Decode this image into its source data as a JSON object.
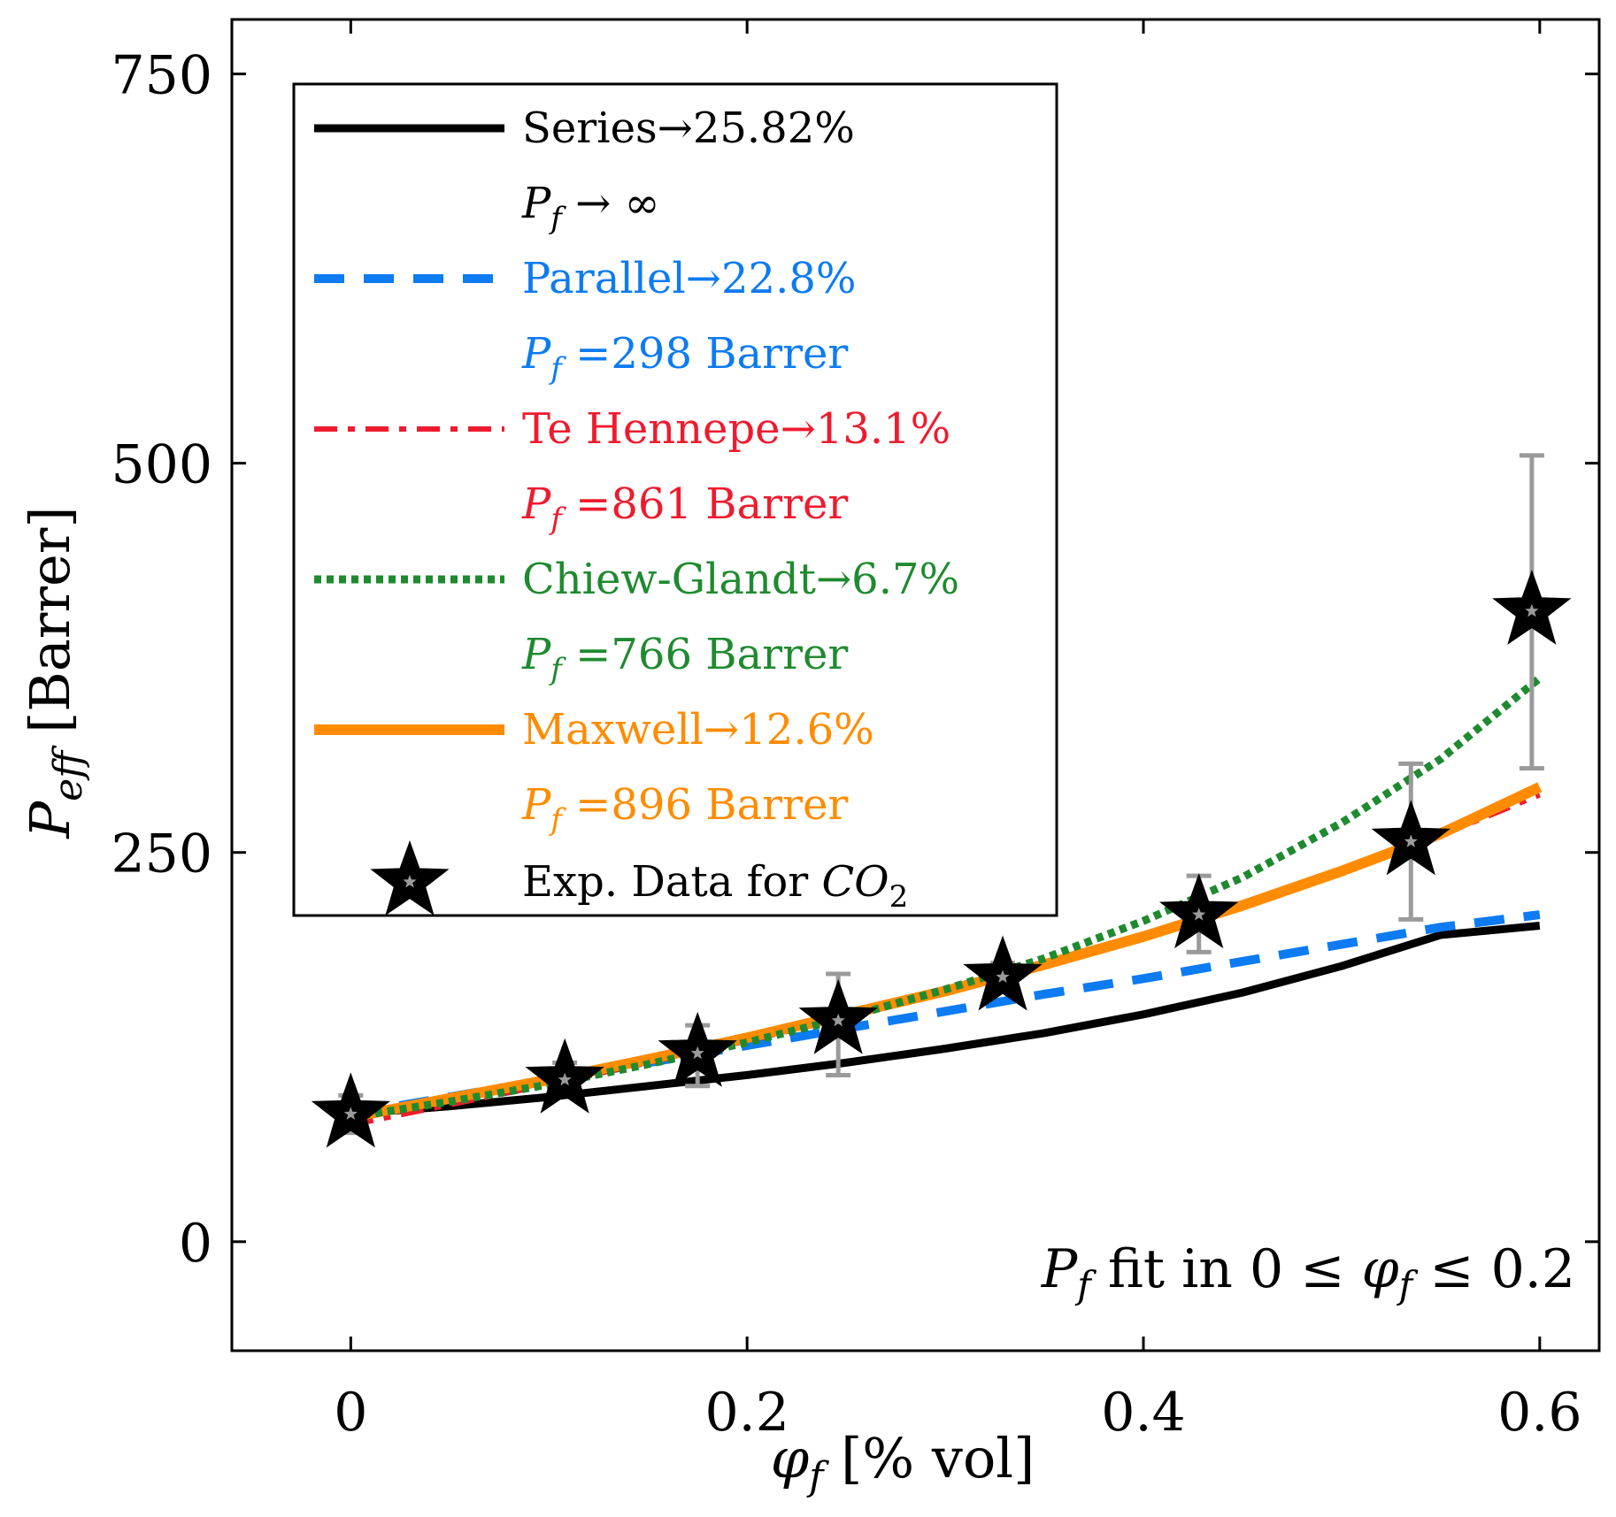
{
  "chart_data": {
    "type": "line",
    "xlabel": "φ_f [% vol]",
    "xlabel_parts": {
      "symbol": "φ",
      "sub": "f",
      "rest": " [% vol]"
    },
    "ylabel": "P_eff [Barrer]",
    "ylabel_parts": {
      "symbol": "P",
      "sub": "eff",
      "rest": " [Barrer]"
    },
    "xlim": [
      -0.06,
      0.63
    ],
    "ylim": [
      -70,
      785
    ],
    "x_ticks": [
      0,
      0.2,
      0.4,
      0.6
    ],
    "x_tick_labels": [
      "0",
      "0.2",
      "0.4",
      "0.6"
    ],
    "y_ticks": [
      0,
      250,
      500,
      750
    ],
    "y_tick_labels": [
      "0",
      "250",
      "500",
      "750"
    ],
    "grid": false,
    "legend_position": "top-left",
    "annotation": {
      "pre": "P",
      "pre_sub": "f",
      "text": " fit in 0 ≤ ",
      "sym": "φ",
      "sym_sub": "f",
      "post": " ≤ 0.2"
    },
    "series": [
      {
        "name": "Series→25.82%",
        "subtitle": {
          "pre": "P",
          "sub": "f",
          "post": " → ∞"
        },
        "color": "#000000",
        "style": "solid",
        "x": [
          0,
          0.05,
          0.1,
          0.15,
          0.2,
          0.25,
          0.3,
          0.35,
          0.4,
          0.45,
          0.5,
          0.55,
          0.6
        ],
        "values": [
          82,
          87,
          93,
          100,
          107,
          115,
          124,
          134,
          146,
          160,
          177,
          197,
          203
        ]
      },
      {
        "name": "Parallel→22.8%",
        "subtitle": {
          "pre": "P",
          "sub": "f",
          "post": " =298 Barrer"
        },
        "color": "#0d7bf2",
        "style": "dashed",
        "x": [
          0,
          0.05,
          0.1,
          0.15,
          0.2,
          0.25,
          0.3,
          0.35,
          0.4,
          0.45,
          0.5,
          0.55,
          0.6
        ],
        "values": [
          82,
          93,
          104,
          115,
          126,
          137,
          148,
          159,
          169,
          180,
          191,
          202,
          210
        ]
      },
      {
        "name": "Te Hennepe→13.1%",
        "subtitle": {
          "pre": "P",
          "sub": "f",
          "post": " =861 Barrer"
        },
        "color": "#ee1b2e",
        "style": "dashdot",
        "x": [
          0,
          0.05,
          0.1,
          0.15,
          0.2,
          0.25,
          0.3,
          0.35,
          0.4,
          0.45,
          0.5,
          0.55,
          0.6
        ],
        "values": [
          75,
          88,
          101,
          115,
          129,
          144,
          160,
          177,
          196,
          216,
          238,
          261,
          287
        ]
      },
      {
        "name": "Chiew-Glandt→6.7%",
        "subtitle": {
          "pre": "P",
          "sub": "f",
          "post": " =766 Barrer"
        },
        "color": "#1f8a30",
        "style": "dotted",
        "x": [
          0,
          0.05,
          0.1,
          0.15,
          0.2,
          0.25,
          0.3,
          0.35,
          0.4,
          0.45,
          0.5,
          0.55,
          0.6
        ],
        "values": [
          80,
          90,
          101,
          114,
          128,
          144,
          162,
          182,
          206,
          234,
          269,
          310,
          362
        ]
      },
      {
        "name": "Maxwell→12.6%",
        "subtitle": {
          "pre": "P",
          "sub": "f",
          "post": " =896 Barrer"
        },
        "color": "#ff8c00",
        "style": "solid",
        "x": [
          0,
          0.05,
          0.1,
          0.15,
          0.2,
          0.25,
          0.3,
          0.35,
          0.4,
          0.45,
          0.5,
          0.55,
          0.6
        ],
        "values": [
          80,
          92,
          104,
          117,
          131,
          146,
          161,
          178,
          196,
          216,
          238,
          262,
          292
        ]
      }
    ],
    "experimental": {
      "name": "Exp. Data for CO₂",
      "label_parts": {
        "text": "Exp. Data for ",
        "sym": "CO",
        "sub": "2"
      },
      "x": [
        0,
        0.108,
        0.175,
        0.246,
        0.329,
        0.428,
        0.535,
        0.596
      ],
      "values": [
        82,
        104,
        121,
        142,
        170,
        210,
        257,
        405
      ],
      "err_low": [
        70,
        95,
        100,
        107,
        165,
        186,
        207,
        304
      ],
      "err_high": [
        94,
        115,
        139,
        172,
        179,
        235,
        307,
        505
      ],
      "marker_color": "#000000",
      "errorbar_color": "#9a9a9a"
    }
  }
}
